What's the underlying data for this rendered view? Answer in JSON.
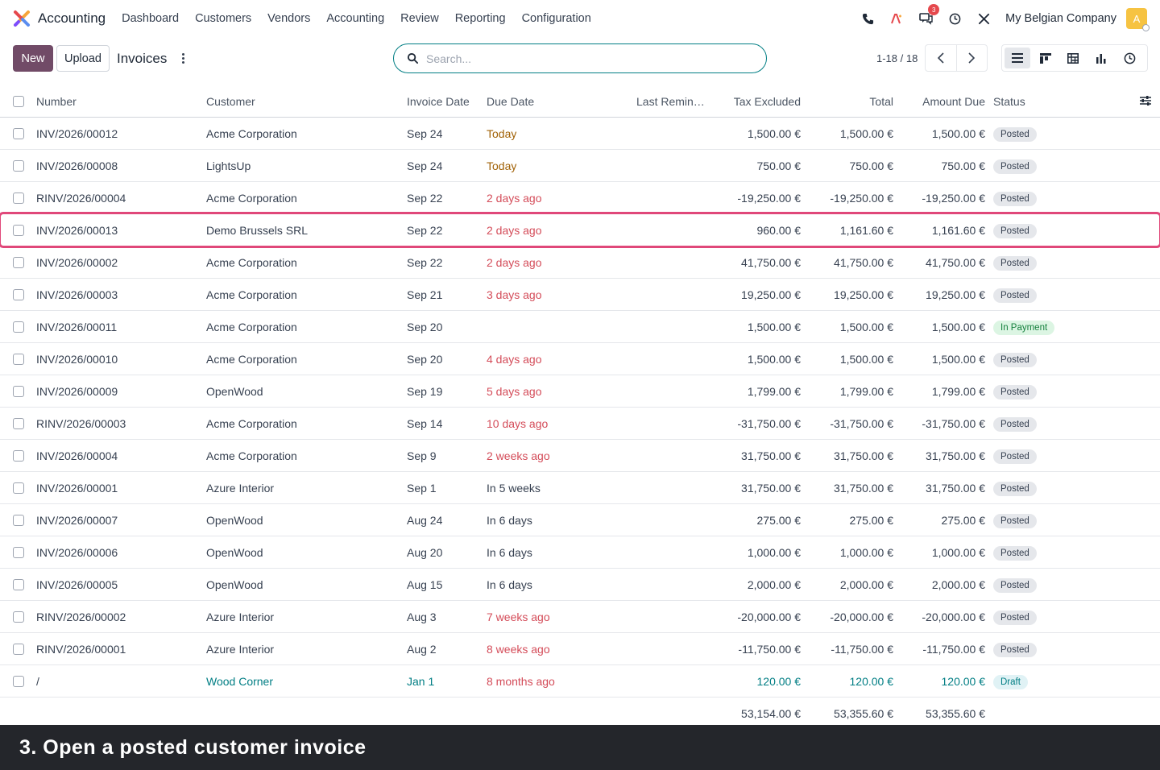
{
  "nav": {
    "app_name": "Accounting",
    "menu": [
      "Dashboard",
      "Customers",
      "Vendors",
      "Accounting",
      "Review",
      "Reporting",
      "Configuration"
    ],
    "messages_count": "3",
    "company": "My Belgian Company",
    "avatar_letter": "A"
  },
  "control": {
    "new_label": "New",
    "upload_label": "Upload",
    "title": "Invoices",
    "search_placeholder": "Search...",
    "pager": "1-18 / 18"
  },
  "columns": {
    "number": "Number",
    "customer": "Customer",
    "invoice_date": "Invoice Date",
    "due_date": "Due Date",
    "last_reminder": "Last Remin…",
    "tax_excluded": "Tax Excluded",
    "total": "Total",
    "amount_due": "Amount Due",
    "status": "Status"
  },
  "rows": [
    {
      "number": "INV/2026/00012",
      "customer": "Acme Corporation",
      "date": "Sep 24",
      "due": "Today",
      "due_style": "warn",
      "tax": "1,500.00 €",
      "total": "1,500.00 €",
      "amount_due": "1,500.00 €",
      "status": "Posted"
    },
    {
      "number": "INV/2026/00008",
      "customer": "LightsUp",
      "date": "Sep 24",
      "due": "Today",
      "due_style": "warn",
      "tax": "750.00 €",
      "total": "750.00 €",
      "amount_due": "750.00 €",
      "status": "Posted"
    },
    {
      "number": "RINV/2026/00004",
      "customer": "Acme Corporation",
      "date": "Sep 22",
      "due": "2 days ago",
      "due_style": "late",
      "tax": "-19,250.00 €",
      "total": "-19,250.00 €",
      "amount_due": "-19,250.00 €",
      "status": "Posted"
    },
    {
      "number": "INV/2026/00013",
      "customer": "Demo Brussels SRL",
      "date": "Sep 22",
      "due": "2 days ago",
      "due_style": "late",
      "tax": "960.00 €",
      "total": "1,161.60 €",
      "amount_due": "1,161.60 €",
      "status": "Posted"
    },
    {
      "number": "INV/2026/00002",
      "customer": "Acme Corporation",
      "date": "Sep 22",
      "due": "2 days ago",
      "due_style": "late",
      "tax": "41,750.00 €",
      "total": "41,750.00 €",
      "amount_due": "41,750.00 €",
      "status": "Posted"
    },
    {
      "number": "INV/2026/00003",
      "customer": "Acme Corporation",
      "date": "Sep 21",
      "due": "3 days ago",
      "due_style": "late",
      "tax": "19,250.00 €",
      "total": "19,250.00 €",
      "amount_due": "19,250.00 €",
      "status": "Posted"
    },
    {
      "number": "INV/2026/00011",
      "customer": "Acme Corporation",
      "date": "Sep 20",
      "due": "",
      "due_style": "",
      "tax": "1,500.00 €",
      "total": "1,500.00 €",
      "amount_due": "1,500.00 €",
      "status": "In Payment"
    },
    {
      "number": "INV/2026/00010",
      "customer": "Acme Corporation",
      "date": "Sep 20",
      "due": "4 days ago",
      "due_style": "late",
      "tax": "1,500.00 €",
      "total": "1,500.00 €",
      "amount_due": "1,500.00 €",
      "status": "Posted"
    },
    {
      "number": "INV/2026/00009",
      "customer": "OpenWood",
      "date": "Sep 19",
      "due": "5 days ago",
      "due_style": "late",
      "tax": "1,799.00 €",
      "total": "1,799.00 €",
      "amount_due": "1,799.00 €",
      "status": "Posted"
    },
    {
      "number": "RINV/2026/00003",
      "customer": "Acme Corporation",
      "date": "Sep 14",
      "due": "10 days ago",
      "due_style": "late",
      "tax": "-31,750.00 €",
      "total": "-31,750.00 €",
      "amount_due": "-31,750.00 €",
      "status": "Posted"
    },
    {
      "number": "INV/2026/00004",
      "customer": "Acme Corporation",
      "date": "Sep 9",
      "due": "2 weeks ago",
      "due_style": "late",
      "tax": "31,750.00 €",
      "total": "31,750.00 €",
      "amount_due": "31,750.00 €",
      "status": "Posted"
    },
    {
      "number": "INV/2026/00001",
      "customer": "Azure Interior",
      "date": "Sep 1",
      "due": "In 5 weeks",
      "due_style": "",
      "tax": "31,750.00 €",
      "total": "31,750.00 €",
      "amount_due": "31,750.00 €",
      "status": "Posted"
    },
    {
      "number": "INV/2026/00007",
      "customer": "OpenWood",
      "date": "Aug 24",
      "due": "In 6 days",
      "due_style": "",
      "tax": "275.00 €",
      "total": "275.00 €",
      "amount_due": "275.00 €",
      "status": "Posted"
    },
    {
      "number": "INV/2026/00006",
      "customer": "OpenWood",
      "date": "Aug 20",
      "due": "In 6 days",
      "due_style": "",
      "tax": "1,000.00 €",
      "total": "1,000.00 €",
      "amount_due": "1,000.00 €",
      "status": "Posted"
    },
    {
      "number": "INV/2026/00005",
      "customer": "OpenWood",
      "date": "Aug 15",
      "due": "In 6 days",
      "due_style": "",
      "tax": "2,000.00 €",
      "total": "2,000.00 €",
      "amount_due": "2,000.00 €",
      "status": "Posted"
    },
    {
      "number": "RINV/2026/00002",
      "customer": "Azure Interior",
      "date": "Aug 3",
      "due": "7 weeks ago",
      "due_style": "late",
      "tax": "-20,000.00 €",
      "total": "-20,000.00 €",
      "amount_due": "-20,000.00 €",
      "status": "Posted"
    },
    {
      "number": "RINV/2026/00001",
      "customer": "Azure Interior",
      "date": "Aug 2",
      "due": "8 weeks ago",
      "due_style": "late",
      "tax": "-11,750.00 €",
      "total": "-11,750.00 €",
      "amount_due": "-11,750.00 €",
      "status": "Posted"
    },
    {
      "number": "/",
      "customer": "Wood Corner",
      "date": "Jan 1",
      "due": "8 months ago",
      "due_style": "late",
      "tax": "120.00 €",
      "total": "120.00 €",
      "amount_due": "120.00 €",
      "status": "Draft"
    }
  ],
  "totals": {
    "tax": "53,154.00 €",
    "total": "53,355.60 €",
    "amount_due": "53,355.60 €"
  },
  "caption": "3. Open a posted customer invoice",
  "colors": {
    "brand": "#714b67",
    "accent": "#017e84",
    "late": "#d44c59",
    "warn": "#a16207",
    "highlight": "#e0487a"
  }
}
